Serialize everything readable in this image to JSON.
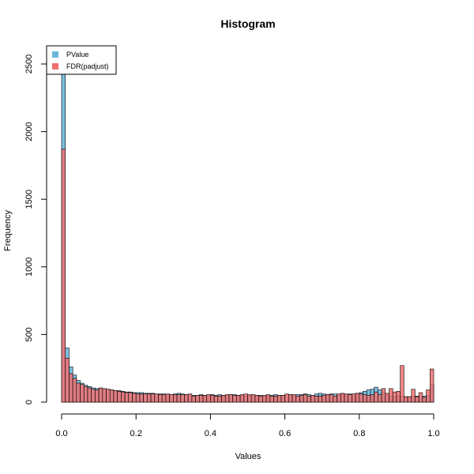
{
  "chart_data": {
    "type": "bar",
    "title": "Histogram",
    "xlabel": "Values",
    "ylabel": "Frequency",
    "xlim": [
      0,
      1
    ],
    "ylim": [
      0,
      2600
    ],
    "xticks": [
      "0.0",
      "0.2",
      "0.4",
      "0.6",
      "0.8",
      "1.0"
    ],
    "yticks": [
      "0",
      "500",
      "1000",
      "1500",
      "2000",
      "2500"
    ],
    "grid": false,
    "legend_position": "top-left",
    "bin_width": 0.01,
    "bin_start": 0,
    "series": [
      {
        "name": "PValue",
        "color": "#6cb8dc",
        "values": [
          2520,
          400,
          260,
          200,
          160,
          140,
          125,
          115,
          105,
          100,
          100,
          95,
          95,
          90,
          85,
          85,
          80,
          75,
          75,
          70,
          70,
          70,
          65,
          65,
          65,
          60,
          60,
          60,
          60,
          55,
          60,
          65,
          60,
          55,
          55,
          50,
          50,
          55,
          50,
          50,
          55,
          50,
          55,
          50,
          50,
          55,
          55,
          50,
          50,
          45,
          50,
          50,
          50,
          50,
          45,
          50,
          50,
          55,
          50,
          50,
          50,
          55,
          50,
          55,
          55,
          60,
          55,
          50,
          60,
          65,
          60,
          55,
          60,
          60,
          55,
          60,
          55,
          60,
          60,
          65,
          70,
          80,
          90,
          95,
          110,
          90,
          70,
          55,
          45,
          40,
          45,
          45,
          40,
          40,
          45,
          45,
          40,
          45,
          50,
          130
        ]
      },
      {
        "name": "FDR(padjust)",
        "color": "#f07070",
        "values": [
          1870,
          325,
          210,
          175,
          140,
          130,
          115,
          105,
          95,
          90,
          105,
          100,
          95,
          90,
          85,
          80,
          75,
          70,
          70,
          65,
          60,
          60,
          60,
          60,
          60,
          60,
          55,
          55,
          60,
          55,
          55,
          55,
          55,
          55,
          60,
          45,
          50,
          50,
          50,
          55,
          50,
          45,
          45,
          50,
          55,
          55,
          50,
          50,
          55,
          60,
          55,
          55,
          50,
          45,
          50,
          55,
          45,
          45,
          50,
          50,
          60,
          55,
          55,
          45,
          50,
          55,
          45,
          50,
          45,
          45,
          50,
          55,
          55,
          45,
          60,
          65,
          60,
          55,
          60,
          65,
          60,
          55,
          50,
          55,
          75,
          55,
          100,
          65,
          100,
          75,
          80,
          270,
          40,
          40,
          95,
          40,
          70,
          35,
          90,
          245
        ]
      }
    ]
  }
}
